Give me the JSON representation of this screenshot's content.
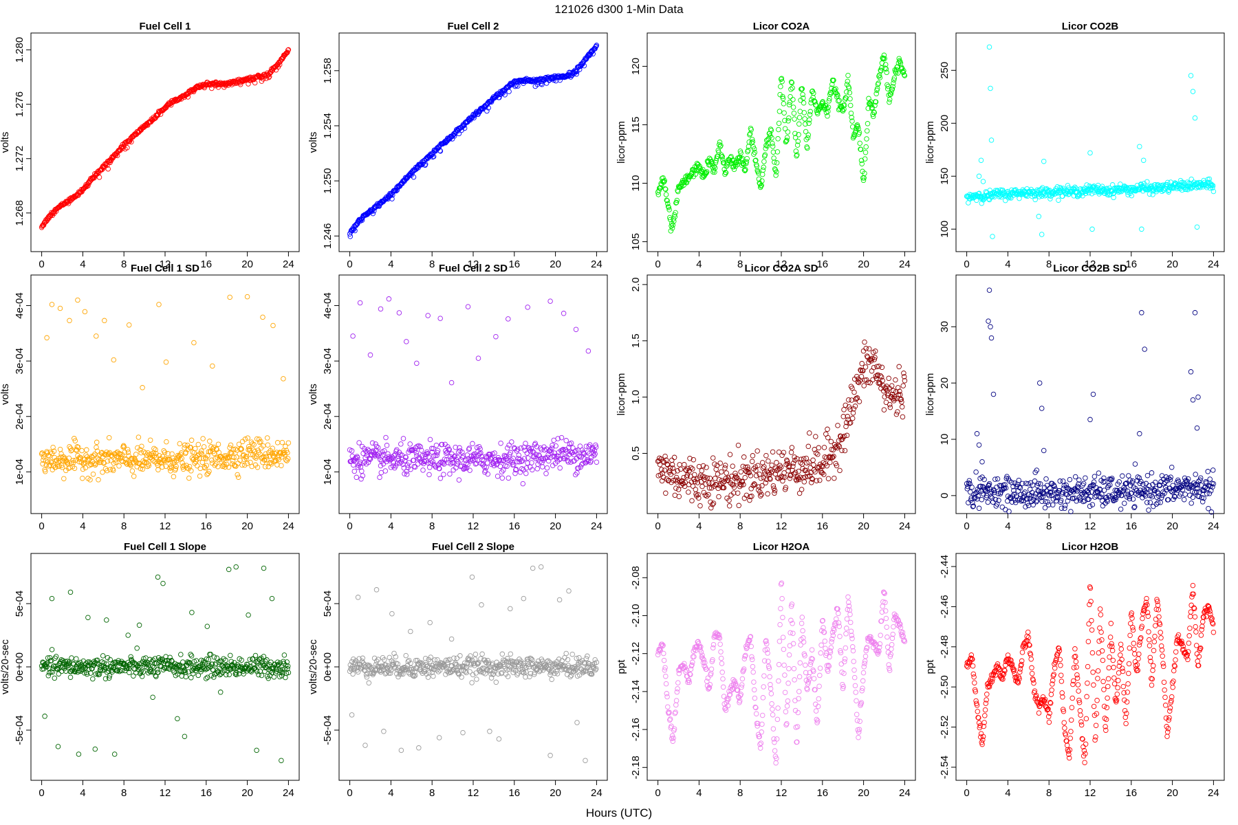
{
  "figure": {
    "title": "121026    d300    1-Min Data",
    "xlabel": "Hours (UTC)"
  },
  "chart_data": [
    {
      "id": "fc1",
      "type": "scatter",
      "title": "Fuel Cell 1",
      "ylabel": "volts",
      "color": "#ff0000",
      "xlim": [
        0,
        24
      ],
      "ylim": [
        1.2658,
        1.2806
      ],
      "xticks": [
        "0",
        "4",
        "8",
        "12",
        "16",
        "20",
        "24"
      ],
      "yticks": [
        "1.268",
        "1.272",
        "1.276",
        "1.280"
      ],
      "x": [
        0,
        1,
        2,
        3,
        4,
        5,
        6,
        7,
        8,
        9,
        10,
        11,
        12,
        13,
        14,
        15,
        16,
        17,
        18,
        19,
        20,
        21,
        22,
        23,
        24
      ],
      "y": [
        1.267,
        1.268,
        1.2686,
        1.2691,
        1.2697,
        1.2706,
        1.2714,
        1.2722,
        1.273,
        1.2737,
        1.2744,
        1.275,
        1.2758,
        1.2763,
        1.2767,
        1.2772,
        1.2775,
        1.2775,
        1.2775,
        1.2777,
        1.2778,
        1.278,
        1.2782,
        1.279,
        1.28
      ]
    },
    {
      "id": "fc2",
      "type": "scatter",
      "title": "Fuel Cell 2",
      "ylabel": "volts",
      "color": "#0000ff",
      "xlim": [
        0,
        24
      ],
      "ylim": [
        1.2455,
        1.2601
      ],
      "xticks": [
        "0",
        "4",
        "8",
        "12",
        "16",
        "20",
        "24"
      ],
      "yticks": [
        "1.246",
        "1.250",
        "1.254",
        "1.258"
      ],
      "x": [
        0,
        1,
        2,
        3,
        4,
        5,
        6,
        7,
        8,
        9,
        10,
        11,
        12,
        13,
        14,
        15,
        16,
        17,
        18,
        19,
        20,
        21,
        22,
        23,
        24
      ],
      "y": [
        1.2462,
        1.2472,
        1.2478,
        1.2484,
        1.249,
        1.2498,
        1.2506,
        1.2513,
        1.252,
        1.2527,
        1.2533,
        1.254,
        1.2547,
        1.2553,
        1.256,
        1.2566,
        1.2572,
        1.2573,
        1.2573,
        1.2574,
        1.2575,
        1.2576,
        1.258,
        1.2589,
        1.2598
      ]
    },
    {
      "id": "co2a",
      "type": "scatter",
      "title": "Licor CO2A",
      "ylabel": "licor-ppm",
      "color": "#00ee00",
      "xlim": [
        0,
        24
      ],
      "ylim": [
        104.9,
        122.1
      ],
      "xticks": [
        "0",
        "4",
        "8",
        "12",
        "16",
        "20",
        "24"
      ],
      "yticks": [
        "105",
        "110",
        "115",
        "120"
      ],
      "x": [
        0,
        0.5,
        1,
        1.3,
        1.6,
        2,
        2.5,
        3,
        3.5,
        4,
        4.5,
        5,
        5.5,
        6,
        6.5,
        7,
        7.5,
        8,
        8.5,
        9,
        9.5,
        10,
        10.5,
        11,
        11.5,
        12,
        12.5,
        13,
        13.5,
        14,
        14.5,
        15,
        15.5,
        16,
        16.5,
        17,
        17.5,
        18,
        18.5,
        19,
        19.5,
        20,
        20.5,
        21,
        21.5,
        22,
        22.5,
        23,
        23.5,
        24
      ],
      "y": [
        109,
        110.5,
        108,
        106,
        107,
        109.5,
        110,
        110.5,
        111,
        111.5,
        110.5,
        112,
        111,
        113.5,
        111,
        112,
        111.5,
        112.5,
        111,
        114.5,
        112,
        109.5,
        113,
        114.5,
        110.5,
        119.5,
        113,
        119,
        112,
        118.5,
        113,
        118,
        116,
        117,
        116,
        119,
        117,
        116,
        119,
        114,
        115,
        110,
        117,
        116,
        119,
        121,
        117,
        119,
        120.5,
        119
      ]
    },
    {
      "id": "co2b",
      "type": "scatter",
      "title": "Licor CO2B",
      "ylabel": "licor-ppm",
      "color": "#00ffff",
      "xlim": [
        0,
        24
      ],
      "ylim": [
        87,
        277
      ],
      "xticks": [
        "0",
        "4",
        "8",
        "12",
        "16",
        "20",
        "24"
      ],
      "yticks": [
        "100",
        "150",
        "200",
        "250"
      ],
      "x": [
        0,
        1,
        2,
        3,
        4,
        5,
        6,
        7,
        8,
        9,
        10,
        11,
        12,
        13,
        14,
        15,
        16,
        17,
        18,
        19,
        20,
        21,
        22,
        23,
        24
      ],
      "y": [
        130,
        132,
        131,
        133,
        133,
        134,
        135,
        134,
        135,
        136,
        135,
        136,
        137,
        137,
        136,
        138,
        137,
        139,
        138,
        139,
        140,
        141,
        141,
        142,
        141
      ],
      "outliers_x": [
        1.2,
        1.4,
        1.6,
        2.2,
        2.3,
        2.4,
        2.5,
        7,
        7.3,
        7.5,
        12,
        12.2,
        16.8,
        17,
        17.2,
        21.8,
        22,
        22.2,
        22.4
      ],
      "outliers_y": [
        150,
        165,
        145,
        272,
        233,
        184,
        93,
        112,
        95,
        164,
        172,
        100,
        178,
        100,
        165,
        245,
        230,
        205,
        102
      ]
    },
    {
      "id": "fc1sd",
      "type": "scatter",
      "title": "Fuel Cell 1 SD",
      "ylabel": "volts",
      "color": "#ffa500",
      "xlim": [
        0,
        24
      ],
      "ylim": [
        4.2e-05,
        0.000438
      ],
      "xticks": [
        "0",
        "4",
        "8",
        "12",
        "16",
        "20",
        "24"
      ],
      "yticks": [
        "1e-04",
        "2e-04",
        "3e-04",
        "4e-04"
      ],
      "x": [
        0,
        2,
        4,
        6,
        8,
        10,
        12,
        14,
        16,
        18,
        20,
        22,
        24
      ],
      "y": [
        0.00012,
        0.000122,
        0.000123,
        0.000121,
        0.000122,
        0.000121,
        0.000123,
        0.000122,
        0.000124,
        0.000128,
        0.000135,
        0.000132,
        0.000132
      ],
      "outliers_x": [
        0.5,
        1,
        1.8,
        2.7,
        3.5,
        4.2,
        5.3,
        6.1,
        7,
        8.5,
        9.8,
        11.4,
        12.1,
        14.8,
        16.6,
        18.3,
        20,
        21.5,
        22.5,
        23.5
      ],
      "outliers_y": [
        0.000342,
        0.000402,
        0.000395,
        0.000373,
        0.00041,
        0.000389,
        0.000345,
        0.000373,
        0.000302,
        0.000365,
        0.000252,
        0.000402,
        0.000298,
        0.000333,
        0.000291,
        0.000415,
        0.000416,
        0.000379,
        0.000364,
        0.000268
      ]
    },
    {
      "id": "fc2sd",
      "type": "scatter",
      "title": "Fuel Cell 2 SD",
      "ylabel": "volts",
      "color": "#a020f0",
      "xlim": [
        0,
        24
      ],
      "ylim": [
        4.2e-05,
        0.000438
      ],
      "xticks": [
        "0",
        "4",
        "8",
        "12",
        "16",
        "20",
        "24"
      ],
      "yticks": [
        "1e-04",
        "2e-04",
        "3e-04",
        "4e-04"
      ],
      "x": [
        0,
        2,
        4,
        6,
        8,
        10,
        12,
        14,
        16,
        18,
        20,
        22,
        24
      ],
      "y": [
        0.000122,
        0.000123,
        0.000122,
        0.000121,
        0.000122,
        0.000121,
        0.000122,
        0.000122,
        0.000123,
        0.000127,
        0.000133,
        0.000131,
        0.000131
      ],
      "outliers_x": [
        0.3,
        1,
        2,
        3,
        3.8,
        4.8,
        5.5,
        6.5,
        7.6,
        8.8,
        9.9,
        11.5,
        12.5,
        14.2,
        15.4,
        17.3,
        19.5,
        20.8,
        22,
        23.2
      ],
      "outliers_y": [
        0.000345,
        0.000405,
        0.000311,
        0.000394,
        0.000412,
        0.000387,
        0.000335,
        0.000296,
        0.000382,
        0.000377,
        0.000261,
        0.000398,
        0.000305,
        0.000344,
        0.000376,
        0.000397,
        0.000408,
        0.000386,
        0.000357,
        0.000318
      ]
    },
    {
      "id": "co2asd",
      "type": "scatter",
      "title": "Licor CO2A SD",
      "ylabel": "licor-ppm",
      "color": "#8b0000",
      "xlim": [
        0,
        24
      ],
      "ylim": [
        0.05,
        2.0
      ],
      "xticks": [
        "0",
        "4",
        "8",
        "12",
        "16",
        "20",
        "24"
      ],
      "yticks": [
        "0.5",
        "1.0",
        "1.5",
        "2.0"
      ],
      "x": [
        0,
        2,
        4,
        6,
        8,
        10,
        12,
        14,
        16,
        17,
        18,
        19,
        20,
        21,
        22,
        23,
        24
      ],
      "y": [
        0.38,
        0.3,
        0.25,
        0.25,
        0.27,
        0.3,
        0.35,
        0.38,
        0.4,
        0.5,
        0.7,
        0.95,
        1.25,
        1.3,
        1.05,
        1.0,
        1.1
      ]
    },
    {
      "id": "co2bsd",
      "type": "scatter",
      "title": "Licor CO2B SD",
      "ylabel": "licor-ppm",
      "color": "#000080",
      "xlim": [
        0,
        24
      ],
      "ylim": [
        -1.5,
        37.5
      ],
      "xticks": [
        "0",
        "4",
        "8",
        "12",
        "16",
        "20",
        "24"
      ],
      "yticks": [
        "0",
        "10",
        "20",
        "30"
      ],
      "x": [
        0,
        2,
        4,
        6,
        8,
        10,
        12,
        14,
        16,
        18,
        20,
        22,
        24
      ],
      "y": [
        0.5,
        0.7,
        0.5,
        0.4,
        0.4,
        0.5,
        0.6,
        0.6,
        0.7,
        0.9,
        1.2,
        1.4,
        1.1
      ],
      "outliers_x": [
        1,
        1.2,
        1.5,
        2.1,
        2.2,
        2.3,
        2.4,
        2.6,
        6.8,
        7.1,
        7.3,
        7.5,
        12,
        12.3,
        16.8,
        17,
        17.3,
        21.8,
        22,
        22.2,
        22.4,
        22.5
      ],
      "outliers_y": [
        11,
        9,
        6,
        31,
        36.5,
        30,
        28,
        18,
        4.5,
        20,
        15.5,
        8,
        13.5,
        18,
        11,
        32.5,
        26,
        22,
        17,
        32.5,
        12,
        17.5
      ]
    },
    {
      "id": "fc1slope",
      "type": "scatter",
      "title": "Fuel Cell 1 Slope",
      "ylabel": "volts/20-sec",
      "color": "#006400",
      "xlim": [
        0,
        24
      ],
      "ylim": [
        -0.000825,
        0.000825
      ],
      "xticks": [
        "0",
        "4",
        "8",
        "12",
        "16",
        "20",
        "24"
      ],
      "yticks": [
        "-5e-04",
        "0e+00",
        "5e-04"
      ],
      "x": [
        0,
        4,
        8,
        12,
        16,
        20,
        24
      ],
      "y": [
        0,
        0,
        0,
        0,
        0,
        0,
        0
      ],
      "outliers_x": [
        0.3,
        1,
        1.6,
        2.8,
        3.6,
        4.5,
        5.2,
        6.3,
        7.1,
        8.4,
        9.5,
        10.8,
        11.3,
        11.8,
        13.2,
        13.9,
        14.6,
        16.1,
        17.4,
        18.2,
        18.9,
        20.1,
        20.9,
        21.6,
        22.4,
        23.3
      ],
      "outliers_y": [
        -0.00039,
        0.00054,
        -0.00063,
        0.00059,
        -0.00069,
        0.00039,
        -0.00065,
        0.00037,
        -0.00069,
        0.00025,
        0.00033,
        -0.00024,
        0.00071,
        0.00066,
        -0.00041,
        -0.00055,
        0.00043,
        0.00032,
        -0.0002,
        0.00077,
        0.00079,
        0.00041,
        -0.00066,
        0.00078,
        0.00054,
        -0.00074
      ]
    },
    {
      "id": "fc2slope",
      "type": "scatter",
      "title": "Fuel Cell 2 Slope",
      "ylabel": "volts/20-sec",
      "color": "#999999",
      "xlim": [
        0,
        24
      ],
      "ylim": [
        -0.000825,
        0.000825
      ],
      "xticks": [
        "0",
        "4",
        "8",
        "12",
        "16",
        "20",
        "24"
      ],
      "yticks": [
        "-5e-04",
        "0e+00",
        "5e-04"
      ],
      "x": [
        0,
        4,
        8,
        12,
        16,
        20,
        24
      ],
      "y": [
        0,
        0,
        0,
        0,
        0,
        0,
        0
      ],
      "outliers_x": [
        0.2,
        0.8,
        1.5,
        2.6,
        3.3,
        4.1,
        5,
        5.9,
        6.7,
        7.8,
        8.7,
        9.9,
        11,
        11.9,
        12.8,
        13.6,
        14.5,
        15.6,
        16.9,
        17.8,
        18.6,
        19.5,
        20.4,
        21.3,
        22.1,
        22.9
      ],
      "outliers_y": [
        -0.00038,
        0.00055,
        -0.00062,
        0.00061,
        -0.00051,
        0.00042,
        -0.00066,
        0.00028,
        -0.00064,
        0.00035,
        -0.00056,
        0.00022,
        -0.00052,
        0.00071,
        0.00049,
        -0.00051,
        -0.00057,
        0.00046,
        0.00054,
        0.00078,
        0.00079,
        -0.0007,
        0.00053,
        0.0006,
        -0.00044,
        -0.00074
      ]
    },
    {
      "id": "h2oa",
      "type": "scatter",
      "title": "Licor H2OA",
      "ylabel": "ppt",
      "color": "#ee82ee",
      "xlim": [
        0,
        24
      ],
      "ylim": [
        -2.182,
        -2.072
      ],
      "xticks": [
        "0",
        "4",
        "8",
        "12",
        "16",
        "20",
        "24"
      ],
      "yticks": [
        "-2.18",
        "-2.16",
        "-2.14",
        "-2.12",
        "-2.10",
        "-2.08"
      ],
      "x": [
        0,
        0.5,
        1,
        1.5,
        2,
        2.5,
        3,
        3.5,
        4,
        4.5,
        5,
        5.5,
        6,
        6.5,
        7,
        7.5,
        8,
        8.5,
        9,
        9.5,
        10,
        10.5,
        11,
        11.5,
        12,
        12.5,
        13,
        13.5,
        14,
        14.5,
        15,
        15.5,
        16,
        16.5,
        17,
        17.5,
        18,
        18.5,
        19,
        19.5,
        20,
        20.5,
        21,
        21.5,
        22,
        22.5,
        23,
        23.5,
        24
      ],
      "y": [
        -2.12,
        -2.115,
        -2.15,
        -2.165,
        -2.13,
        -2.125,
        -2.135,
        -2.12,
        -2.115,
        -2.125,
        -2.14,
        -2.11,
        -2.11,
        -2.15,
        -2.14,
        -2.135,
        -2.145,
        -2.12,
        -2.11,
        -2.15,
        -2.17,
        -2.11,
        -2.14,
        -2.18,
        -2.08,
        -2.16,
        -2.09,
        -2.17,
        -2.1,
        -2.14,
        -2.12,
        -2.16,
        -2.1,
        -2.13,
        -2.11,
        -2.095,
        -2.14,
        -2.09,
        -2.12,
        -2.165,
        -2.13,
        -2.11,
        -2.115,
        -2.12,
        -2.085,
        -2.13,
        -2.1,
        -2.105,
        -2.115
      ]
    },
    {
      "id": "h2ob",
      "type": "scatter",
      "title": "Licor H2OB",
      "ylabel": "ppt",
      "color": "#ff0000",
      "xlim": [
        0,
        24
      ],
      "ylim": [
        -2.542,
        -2.438
      ],
      "xticks": [
        "0",
        "4",
        "8",
        "12",
        "16",
        "20",
        "24"
      ],
      "yticks": [
        "-2.54",
        "-2.52",
        "-2.50",
        "-2.48",
        "-2.46",
        "-2.44"
      ],
      "x": [
        0,
        0.5,
        1,
        1.5,
        2,
        2.5,
        3,
        3.5,
        4,
        4.5,
        5,
        5.5,
        6,
        6.5,
        7,
        7.5,
        8,
        8.5,
        9,
        9.5,
        10,
        10.5,
        11,
        11.5,
        12,
        12.5,
        13,
        13.5,
        14,
        14.5,
        15,
        15.5,
        16,
        16.5,
        17,
        17.5,
        18,
        18.5,
        19,
        19.5,
        20,
        20.5,
        21,
        21.5,
        22,
        22.5,
        23,
        23.5,
        24
      ],
      "y": [
        -2.49,
        -2.485,
        -2.51,
        -2.53,
        -2.5,
        -2.495,
        -2.49,
        -2.495,
        -2.485,
        -2.49,
        -2.5,
        -2.48,
        -2.475,
        -2.5,
        -2.51,
        -2.505,
        -2.515,
        -2.49,
        -2.48,
        -2.52,
        -2.535,
        -2.48,
        -2.51,
        -2.54,
        -2.445,
        -2.53,
        -2.46,
        -2.525,
        -2.47,
        -2.51,
        -2.48,
        -2.52,
        -2.46,
        -2.495,
        -2.47,
        -2.455,
        -2.5,
        -2.455,
        -2.48,
        -2.525,
        -2.5,
        -2.475,
        -2.48,
        -2.485,
        -2.45,
        -2.49,
        -2.465,
        -2.46,
        -2.47
      ]
    }
  ]
}
